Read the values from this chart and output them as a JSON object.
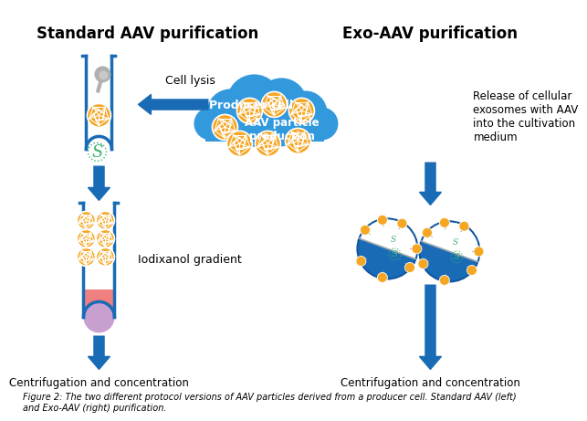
{
  "title_left": "Standard AAV purification",
  "title_right": "Exo-AAV purification",
  "caption": "Figure 2: The two different protocol versions of AAV particles derived from a producer cell. Standard AAV (left)\nand Exo-AAV (right) purification.",
  "cloud_text1": "Producer cell",
  "cloud_text2": "AAV particle\nproduction",
  "label_cell_lysis": "Cell lysis",
  "label_iodixanol": "Iodixanol gradient",
  "label_centrifugation_left": "Centrifugation and concentration",
  "label_centrifugation_right": "Centrifugation and concentration",
  "label_release": "Release of cellular\nexosomes with AAV\ninto the cultivation\nmedium",
  "blue_dark": "#1A6BB5",
  "blue_medium": "#2196F3",
  "cloud_color": "#3399DD",
  "orange_color": "#F5A623",
  "background": "#FFFFFF",
  "tube_border": "#1A6BB5",
  "pink_layer": "#F08080",
  "purple_layer": "#C8A0D0",
  "green_dna": "#3CB371",
  "gray_swab": "#A0A0A0"
}
